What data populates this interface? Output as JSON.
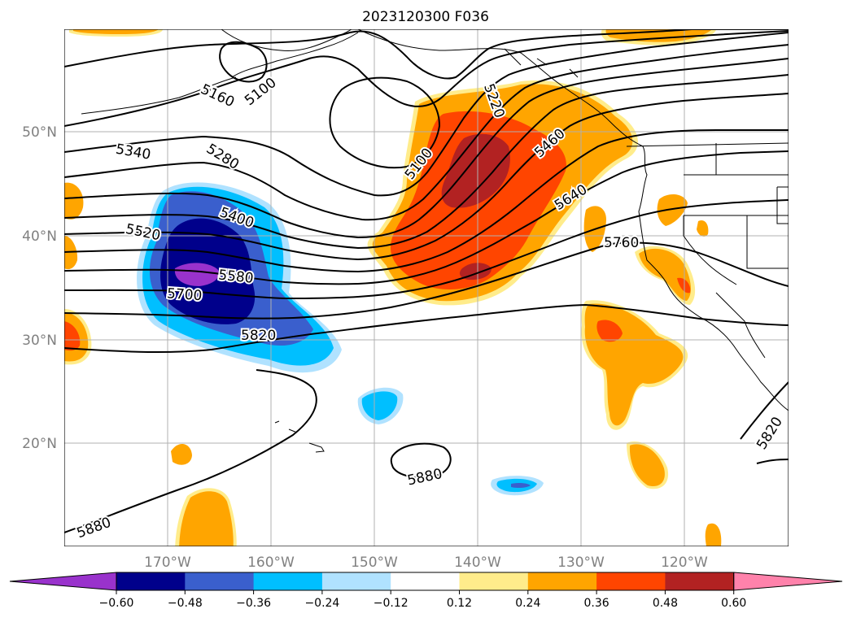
{
  "title": "2023120300 F036",
  "map": {
    "lat_labels": [
      "50°N",
      "40°N",
      "30°N",
      "20°N"
    ],
    "lon_labels": [
      "170°W",
      "160°W",
      "150°W",
      "140°W",
      "130°W",
      "120°W"
    ],
    "contour_labels": [
      "5100",
      "5160",
      "5220",
      "5100",
      "5460",
      "5340",
      "5280",
      "5400",
      "5640",
      "5520",
      "5580",
      "5700",
      "5760",
      "5820",
      "5880",
      "5880",
      "5820"
    ]
  },
  "colorbar": {
    "tick_labels": [
      "−0.60",
      "−0.48",
      "−0.36",
      "−0.24",
      "−0.12",
      "0.12",
      "0.24",
      "0.36",
      "0.48",
      "0.60"
    ],
    "colors": [
      "#9932cc",
      "#00008b",
      "#3a5fcd",
      "#00bfff",
      "#b0e2ff",
      "#ffffff",
      "#ffec8b",
      "#ffa500",
      "#ff4500",
      "#b22222",
      "#ff82ab"
    ]
  }
}
